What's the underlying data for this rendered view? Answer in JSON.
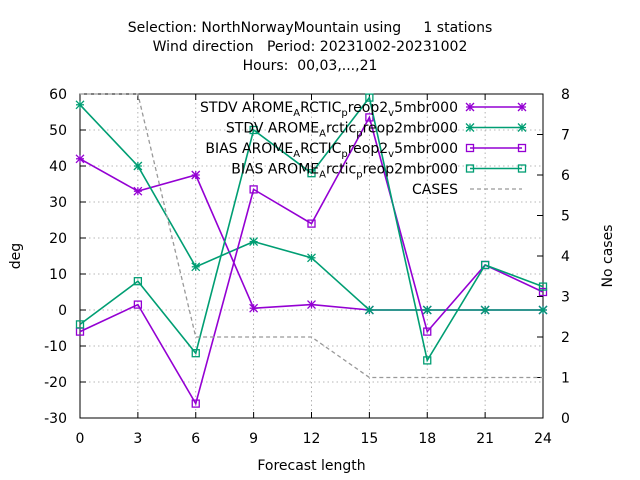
{
  "chart_data": {
    "type": "line",
    "title_lines": [
      "Selection: NorthNorwayMountain using     1 stations",
      "Wind direction   Period: 20231002-20231002",
      "Hours:  00,03,...,21"
    ],
    "xlabel": "Forecast length",
    "ylabel": "deg",
    "y2label": "No cases",
    "x": [
      0,
      3,
      6,
      9,
      12,
      15,
      18,
      21,
      24
    ],
    "xlim": [
      0,
      24
    ],
    "ylim": [
      -30,
      60
    ],
    "y2lim": [
      0,
      8
    ],
    "xticks": [
      0,
      3,
      6,
      9,
      12,
      15,
      18,
      21,
      24
    ],
    "yticks": [
      -30,
      -20,
      -10,
      0,
      10,
      20,
      30,
      40,
      50,
      60
    ],
    "y2ticks": [
      0,
      1,
      2,
      3,
      4,
      5,
      6,
      7,
      8
    ],
    "grid": true,
    "legend_position": "top-right",
    "series": [
      {
        "legend": [
          "STDV AROME",
          "A",
          "RCTIC",
          "p",
          "reop2",
          "v",
          "5mbr000"
        ],
        "color": "#9400d3",
        "marker": "star",
        "axis": "y",
        "dash": "",
        "points": [
          [
            0,
            42
          ],
          [
            3,
            33
          ],
          [
            6,
            37.5
          ],
          [
            9,
            0.5
          ],
          [
            12,
            1.5
          ],
          [
            15,
            0
          ],
          [
            18,
            0
          ],
          [
            21,
            0
          ],
          [
            24,
            0
          ]
        ]
      },
      {
        "legend": [
          "STDV AROME",
          "A",
          "rctic",
          "p",
          "reop2mbr000"
        ],
        "color": "#009e73",
        "marker": "star",
        "axis": "y",
        "dash": "",
        "points": [
          [
            0,
            57
          ],
          [
            3,
            40
          ],
          [
            6,
            12
          ],
          [
            9,
            19
          ],
          [
            12,
            14.5
          ],
          [
            15,
            0
          ],
          [
            18,
            0
          ],
          [
            21,
            0
          ],
          [
            24,
            0
          ]
        ]
      },
      {
        "legend": [
          "BIAS AROME",
          "A",
          "RCTIC",
          "p",
          "reop2",
          "v",
          "5mbr000"
        ],
        "color": "#9400d3",
        "marker": "square",
        "axis": "y",
        "dash": "",
        "points": [
          [
            0,
            -6
          ],
          [
            3,
            1.5
          ],
          [
            6,
            -26
          ],
          [
            9,
            33.5
          ],
          [
            12,
            24
          ],
          [
            15,
            53.5
          ],
          [
            18,
            -6
          ],
          [
            21,
            12.5
          ],
          [
            24,
            5
          ]
        ]
      },
      {
        "legend": [
          "BIAS AROME",
          "A",
          "rctic",
          "p",
          "reop2mbr000"
        ],
        "color": "#009e73",
        "marker": "square",
        "axis": "y",
        "dash": "",
        "points": [
          [
            0,
            -4
          ],
          [
            3,
            8
          ],
          [
            6,
            -12
          ],
          [
            9,
            50
          ],
          [
            12,
            38
          ],
          [
            15,
            59
          ],
          [
            18,
            -14
          ],
          [
            21,
            12.5
          ],
          [
            24,
            6.5
          ]
        ]
      },
      {
        "legend": [
          "CASES"
        ],
        "color": "#999999",
        "marker": "none",
        "axis": "y2",
        "dash": "4,3",
        "points": [
          [
            0,
            8
          ],
          [
            3,
            8
          ],
          [
            6,
            2
          ],
          [
            9,
            2
          ],
          [
            12,
            2
          ],
          [
            15,
            1
          ],
          [
            18,
            1
          ],
          [
            21,
            1
          ],
          [
            24,
            1
          ]
        ]
      }
    ]
  }
}
